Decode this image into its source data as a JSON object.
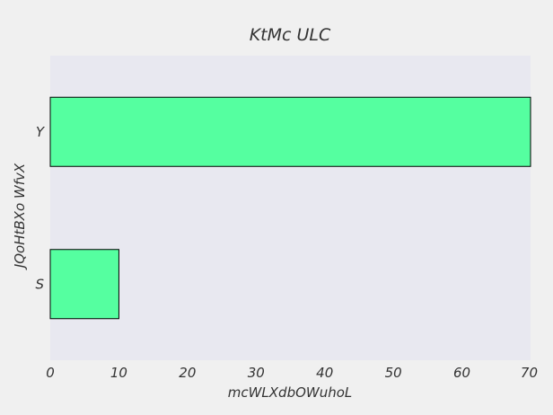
{
  "chart_data": {
    "type": "bar",
    "orientation": "horizontal",
    "title": "KtMc ULC",
    "xlabel": "mcWLXdbOWuhoL",
    "ylabel": "JQoHtBXo WfvX",
    "categories": [
      "S",
      "Y"
    ],
    "values": [
      10,
      70
    ],
    "xlim": [
      0,
      70
    ],
    "xticks": [
      0,
      10,
      20,
      30,
      40,
      50,
      60,
      70
    ],
    "grid": false,
    "colors": {
      "bar": "#55ffa0",
      "plot_background": "#e8e8f0",
      "page_background": "#f0f0f0"
    }
  }
}
